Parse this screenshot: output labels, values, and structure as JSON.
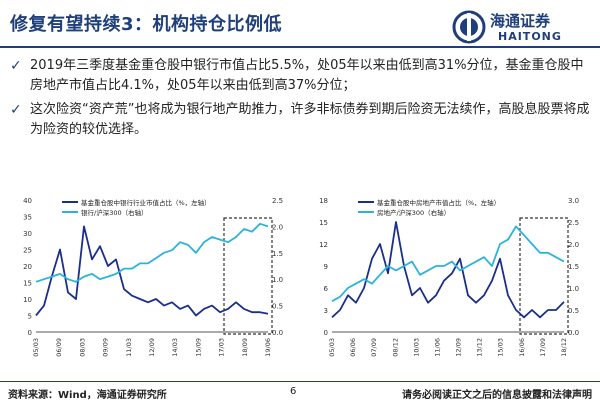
{
  "slide": {
    "title": "修复有望持续3：机构持仓比例低",
    "bullets": [
      "2019年三季度基金重仓股中银行市值占比5.5%，处05年以来由低到高31%分位，基金重仓股中房地产市值占比4.1%，处05年以来由低到高37%分位；",
      "这次险资“资产荒”也将成为银行地产助推力，许多非标债券到期后险资无法续作，高股息股票将成为险资的较优选择。"
    ],
    "logo": {
      "zh": "海通证券",
      "en": "HAITONG"
    },
    "footer": {
      "source": "资料来源：Wind，海通证券研究所",
      "page": "6",
      "disclaimer": "请务必阅读正文之后的信息披露和法律声明"
    }
  },
  "colors": {
    "brand": "#1f3f7a",
    "series_navy": "#1a2f8c",
    "series_cyan": "#2bb3dc"
  },
  "chart_data": [
    {
      "type": "line",
      "dates": [
        "05/03",
        "05/09",
        "06/03",
        "06/09",
        "07/03",
        "07/09",
        "08/03",
        "08/09",
        "09/03",
        "09/09",
        "10/03",
        "10/09",
        "11/03",
        "11/09",
        "12/03",
        "12/09",
        "13/03",
        "13/09",
        "14/03",
        "14/09",
        "15/03",
        "15/09",
        "16/03",
        "16/09",
        "17/03",
        "17/09",
        "18/03",
        "18/09",
        "19/03",
        "19/09"
      ],
      "x_tick_labels": [
        "05/03",
        "06/09",
        "08/03",
        "09/09",
        "11/03",
        "12/09",
        "14/03",
        "15/09",
        "17/03",
        "18/09",
        "19/06"
      ],
      "series": [
        {
          "name": "基金重仓股中银行行业市值占比（%，左轴）",
          "axis": "left",
          "values": [
            5,
            8,
            17,
            25,
            12,
            10,
            32,
            22,
            26,
            20,
            22,
            13,
            11,
            10,
            9,
            10,
            8,
            9,
            7,
            8,
            5,
            7,
            8,
            6,
            7,
            9,
            7,
            6,
            6,
            5.5
          ]
        },
        {
          "name": "银行/沪深300（右轴）",
          "axis": "right",
          "values": [
            0.95,
            1.0,
            1.05,
            1.1,
            1.0,
            0.95,
            1.05,
            1.1,
            1.0,
            1.05,
            1.1,
            1.2,
            1.2,
            1.3,
            1.3,
            1.4,
            1.5,
            1.55,
            1.7,
            1.65,
            1.5,
            1.7,
            1.8,
            1.75,
            1.7,
            1.8,
            1.95,
            1.9,
            2.05,
            2.0
          ]
        }
      ],
      "y_left": {
        "min": 0,
        "max": 40,
        "ticks": [
          0,
          5,
          10,
          15,
          20,
          25,
          30,
          35,
          40
        ]
      },
      "y_right": {
        "min": 0,
        "max": 2.5,
        "ticks": [
          "0.0",
          "0.5",
          "1.0",
          "1.5",
          "2.0",
          "2.5"
        ]
      },
      "highlight_range": [
        "17/03",
        "19/09"
      ]
    },
    {
      "type": "line",
      "dates": [
        "05/03",
        "05/09",
        "06/03",
        "06/09",
        "07/03",
        "07/09",
        "08/03",
        "08/09",
        "09/03",
        "09/09",
        "10/03",
        "10/09",
        "11/03",
        "11/09",
        "12/03",
        "12/09",
        "13/03",
        "13/09",
        "14/03",
        "14/09",
        "15/03",
        "15/09",
        "16/03",
        "16/09",
        "17/03",
        "17/09",
        "18/03",
        "18/09",
        "19/03",
        "19/09"
      ],
      "x_tick_labels": [
        "05/03",
        "06/06",
        "07/09",
        "08/12",
        "10/03",
        "11/06",
        "12/09",
        "13/12",
        "15/03",
        "16/06",
        "17/09",
        "18/12"
      ],
      "series": [
        {
          "name": "基金重仓股中房地产市值占比（%，左轴）",
          "axis": "left",
          "values": [
            2,
            3,
            5,
            4,
            6,
            10,
            12,
            8,
            15,
            9,
            5,
            6,
            4,
            5,
            7,
            8,
            10,
            5,
            4,
            5,
            7,
            10,
            5,
            3,
            2,
            3,
            2,
            3,
            3,
            4.1
          ]
        },
        {
          "name": "房地产/沪深300（右轴）",
          "axis": "right",
          "values": [
            0.7,
            0.8,
            1.0,
            1.1,
            1.2,
            1.1,
            1.3,
            1.5,
            1.4,
            1.5,
            1.6,
            1.3,
            1.4,
            1.5,
            1.5,
            1.6,
            1.4,
            1.5,
            1.6,
            1.7,
            1.5,
            2.0,
            2.1,
            2.4,
            2.2,
            2.0,
            1.8,
            1.8,
            1.7,
            1.6
          ]
        }
      ],
      "y_left": {
        "min": 0,
        "max": 18,
        "ticks": [
          0,
          3,
          6,
          9,
          12,
          15,
          18
        ]
      },
      "y_right": {
        "min": 0,
        "max": 3.0,
        "ticks": [
          "0.0",
          "0.5",
          "1.0",
          "1.5",
          "2.0",
          "2.5",
          "3.0"
        ]
      },
      "highlight_range": [
        "17/03",
        "19/09"
      ]
    }
  ]
}
